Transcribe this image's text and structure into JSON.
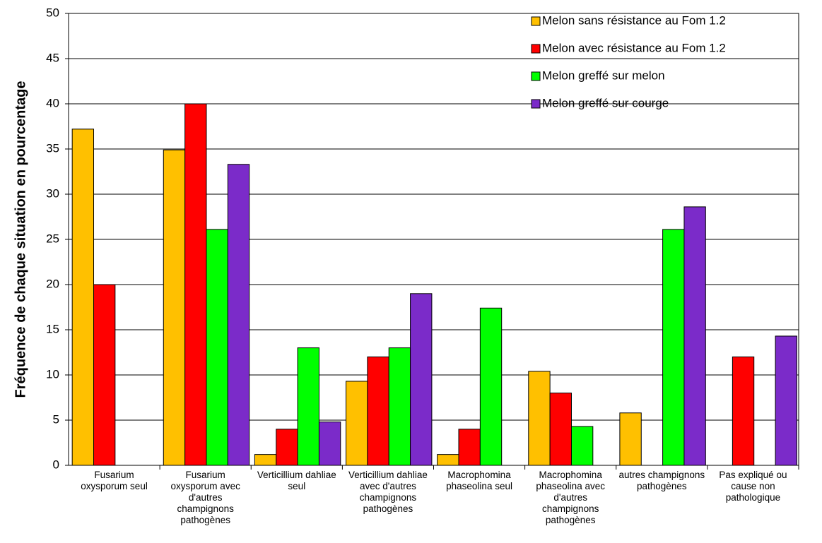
{
  "chart_data": {
    "type": "bar",
    "y_label": "Fréquence de chaque situation en pourcentage",
    "categories": [
      "Fusarium oxysporum seul",
      "Fusarium oxysporum avec d'autres champignons pathogènes",
      "Verticillium dahliae seul",
      "Verticillium dahliae avec d'autres champignons pathogènes",
      "Macrophomina phaseolina seul",
      "Macrophomina phaseolina avec d'autres champignons pathogènes",
      "autres champignons pathogènes",
      "Pas expliqué ou cause non pathologique"
    ],
    "series": [
      {
        "name": "Melon sans résistance au Fom 1.2",
        "color": "#ffc000",
        "values": [
          37.2,
          34.9,
          1.2,
          9.3,
          1.2,
          10.4,
          5.8,
          null
        ]
      },
      {
        "name": "Melon avec résistance au Fom 1.2",
        "color": "#ff0000",
        "values": [
          20,
          40,
          4,
          12,
          4,
          8,
          null,
          12
        ]
      },
      {
        "name": "Melon greffé sur melon",
        "color": "#00ff00",
        "values": [
          null,
          26.1,
          13.0,
          13.0,
          17.4,
          4.3,
          26.1,
          null
        ]
      },
      {
        "name": "Melon greffé sur courge",
        "color": "#7b2bc9",
        "values": [
          null,
          33.3,
          4.8,
          19.0,
          null,
          null,
          28.6,
          14.3
        ]
      }
    ],
    "ylim": [
      0,
      50
    ],
    "yticks": [
      0,
      5,
      10,
      15,
      20,
      25,
      30,
      35,
      40,
      45,
      50
    ],
    "grid": true,
    "legend": "top-right"
  }
}
